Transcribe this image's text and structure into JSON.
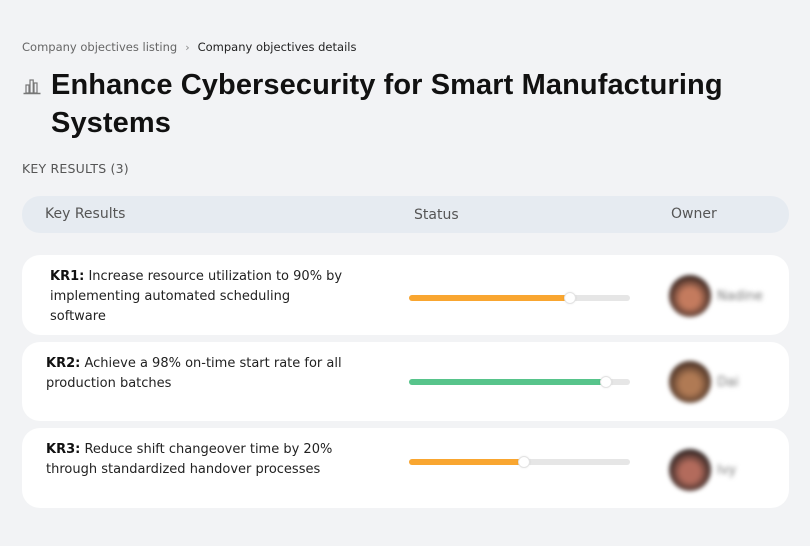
{
  "breadcrumb": {
    "items": [
      {
        "label": "Company objectives listing"
      },
      {
        "label": "Company objectives details"
      }
    ],
    "separator": "›"
  },
  "objective": {
    "icon": "building-chart-icon",
    "title": "Enhance Cybersecurity for Smart Manufacturing Systems"
  },
  "key_results_section": {
    "heading": "KEY RESULTS (3)",
    "columns": {
      "key_results": "Key Results",
      "status": "Status",
      "owner": "Owner"
    },
    "rows": [
      {
        "id": "KR1:",
        "text": " Increase resource utilization to 90% by implementing automated scheduling software",
        "progress": 73,
        "color": "#f9a630",
        "owner": "Nadine",
        "avatar_colors": [
          "#3a2722",
          "#c47b5e"
        ]
      },
      {
        "id": "KR2:",
        "text": " Achieve a 98% on-time start rate for all production batches",
        "progress": 89,
        "color": "#57c48b",
        "owner": "Dai",
        "avatar_colors": [
          "#4a3226",
          "#b07a54"
        ]
      },
      {
        "id": "KR3:",
        "text": " Reduce shift changeover time by 20% through standardized handover processes",
        "progress": 52,
        "color": "#f9a630",
        "owner": "Ivy",
        "avatar_colors": [
          "#2f2422",
          "#b36b5c"
        ]
      }
    ]
  }
}
